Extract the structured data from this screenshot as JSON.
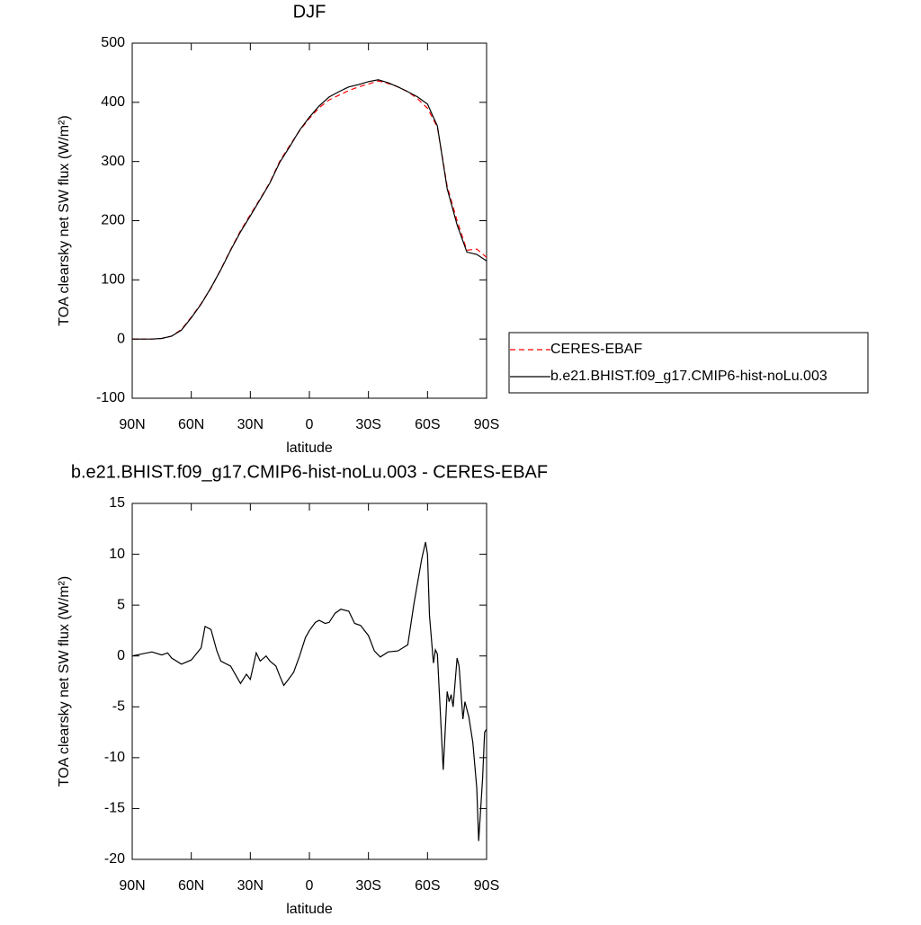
{
  "chart_data": [
    {
      "type": "line",
      "title": "DJF",
      "xlabel": "latitude",
      "ylabel": "TOA clearsky net SW flux (W/m²)",
      "x": [
        90,
        80,
        75,
        70,
        65,
        60,
        55,
        50,
        45,
        40,
        35,
        30,
        25,
        20,
        15,
        10,
        5,
        0,
        -5,
        -10,
        -15,
        -20,
        -25,
        -30,
        -35,
        -40,
        -45,
        -50,
        -55,
        -60,
        -65,
        -70,
        -75,
        -80,
        -85,
        -90
      ],
      "series": [
        {
          "name": "CERES-EBAF",
          "color": "#ff0000",
          "dash": true,
          "values": [
            0,
            0,
            1,
            5,
            16,
            37,
            60,
            86,
            118,
            151,
            183,
            210,
            237,
            265,
            301,
            327,
            352,
            373,
            391,
            404,
            412,
            420,
            426,
            431,
            436,
            432,
            426,
            418,
            406,
            390,
            358,
            258,
            200,
            150,
            152,
            138
          ]
        },
        {
          "name": "b.e21.BHIST.f09_g17.CMIP6-hist-noLu.003",
          "color": "#000000",
          "dash": false,
          "values": [
            0,
            0,
            1,
            5,
            15,
            36,
            59,
            87,
            117,
            150,
            181,
            208,
            236,
            264,
            299,
            325,
            353,
            375,
            394,
            409,
            418,
            426,
            430,
            435,
            438,
            433,
            426,
            418,
            409,
            397,
            360,
            254,
            193,
            147,
            143,
            132
          ]
        }
      ],
      "xlim": [
        90,
        -90
      ],
      "ylim": [
        -100,
        500
      ],
      "xticks": [
        {
          "value": 90,
          "label": "90N"
        },
        {
          "value": 60,
          "label": "60N"
        },
        {
          "value": 30,
          "label": "30N"
        },
        0,
        {
          "value": -30,
          "label": "30S"
        },
        {
          "value": -60,
          "label": "60S"
        },
        {
          "value": -90,
          "label": "90S"
        }
      ],
      "yticks": [
        -100,
        0,
        100,
        200,
        300,
        400,
        500
      ]
    },
    {
      "type": "line",
      "title": "b.e21.BHIST.f09_g17.CMIP6-hist-noLu.003 - CERES-EBAF",
      "xlabel": "latitude",
      "ylabel": "TOA clearsky net SW flux (W/m²)",
      "x": [
        90,
        80,
        75,
        72,
        70,
        65,
        60,
        55,
        53,
        50,
        47,
        45,
        40,
        35,
        32,
        30,
        27,
        25,
        22,
        20,
        17,
        15,
        13,
        11,
        8,
        5,
        2,
        0,
        -3,
        -5,
        -8,
        -10,
        -13,
        -16,
        -20,
        -23,
        -26,
        -30,
        -33,
        -36,
        -40,
        -45,
        -50,
        -53,
        -57,
        -59,
        -60,
        -61,
        -63,
        -64,
        -65,
        -68,
        -70,
        -71,
        -72,
        -73,
        -75,
        -76,
        -78,
        -79,
        -81,
        -83,
        -85,
        -86,
        -88,
        -89,
        -90
      ],
      "values": [
        0,
        0.4,
        0.1,
        0.3,
        -0.2,
        -0.8,
        -0.4,
        0.8,
        2.9,
        2.6,
        0.5,
        -0.5,
        -1,
        -2.7,
        -1.8,
        -2.3,
        0.3,
        -0.5,
        0,
        -0.5,
        -1,
        -2,
        -2.9,
        -2.4,
        -1.6,
        0,
        1.8,
        2.5,
        3.3,
        3.5,
        3.2,
        3.3,
        4.2,
        4.6,
        4.4,
        3.2,
        3,
        2,
        0.5,
        -0.1,
        0.4,
        0.5,
        1.1,
        5,
        9.5,
        11.2,
        10,
        4,
        -0.7,
        0.6,
        0.2,
        -11.2,
        -3.5,
        -4.5,
        -3.8,
        -5,
        -0.2,
        -1,
        -6.2,
        -4.5,
        -6,
        -8.5,
        -13,
        -18.2,
        -12,
        -7.5,
        -7.2
      ],
      "color": "#000000",
      "xlim": [
        90,
        -90
      ],
      "ylim": [
        -20,
        15
      ],
      "xticks": [
        {
          "value": 90,
          "label": "90N"
        },
        {
          "value": 60,
          "label": "60N"
        },
        {
          "value": 30,
          "label": "30N"
        },
        0,
        {
          "value": -30,
          "label": "30S"
        },
        {
          "value": -60,
          "label": "60S"
        },
        {
          "value": -90,
          "label": "90S"
        }
      ],
      "yticks": [
        -20,
        -15,
        -10,
        -5,
        0,
        5,
        10,
        15
      ]
    }
  ]
}
